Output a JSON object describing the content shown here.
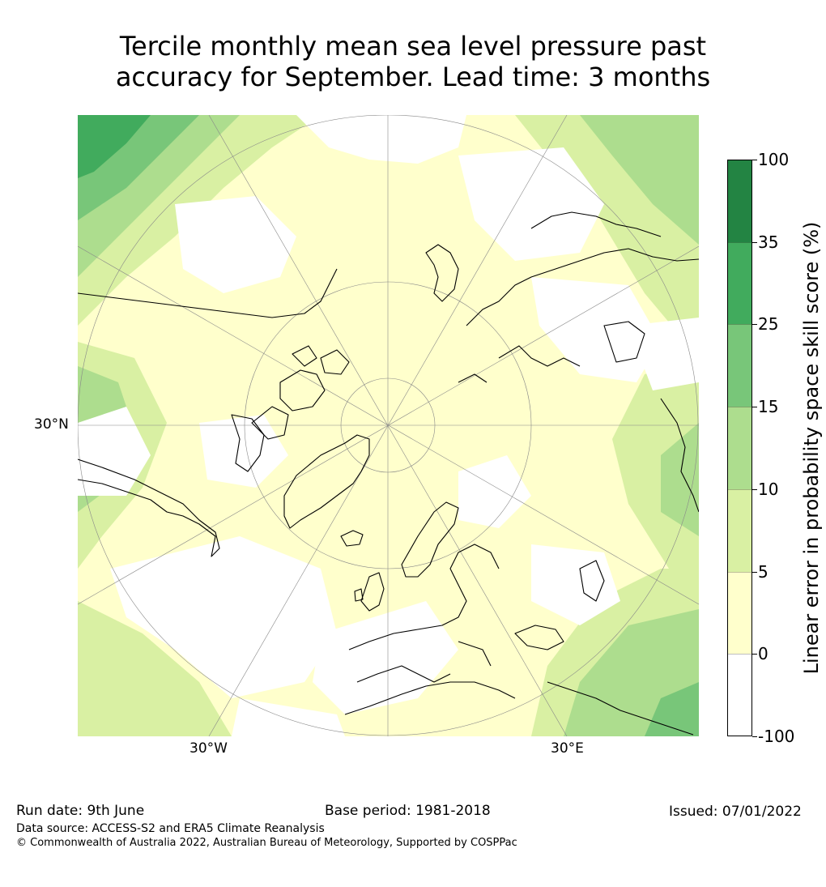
{
  "title_line1": "Tercile monthly mean sea level pressure past",
  "title_line2": "accuracy for September. Lead time: 3 months",
  "map": {
    "lat_label": "30°N",
    "lon_label_left": "30°W",
    "lon_label_right": "30°E",
    "land_outline_color": "#000000",
    "grid_color": "#888888"
  },
  "colorbar": {
    "title": "Linear error in probability space skill score (%)",
    "ticks": [
      "100",
      "35",
      "25",
      "15",
      "10",
      "5",
      "0",
      "-100"
    ],
    "bins": [
      {
        "range": "35 to 100",
        "color": "#238443"
      },
      {
        "range": "25 to 35",
        "color": "#41ab5d"
      },
      {
        "range": "15 to 25",
        "color": "#78c679"
      },
      {
        "range": "10 to 15",
        "color": "#addd8e"
      },
      {
        "range": "5 to 10",
        "color": "#d9f0a3"
      },
      {
        "range": "0 to 5",
        "color": "#ffffcc"
      },
      {
        "range": "-100 to 0",
        "color": "#ffffff"
      }
    ]
  },
  "footer": {
    "run_date": "Run date: 9th June",
    "base_period": "Base period: 1981-2018",
    "issued": "Issued: 07/01/2022",
    "data_source": "Data source: ACCESS-S2 and ERA5 Climate Reanalysis",
    "copyright": "© Commonwealth of Australia 2022, Australian Bureau of Meteorology, Supported by COSPPac"
  }
}
